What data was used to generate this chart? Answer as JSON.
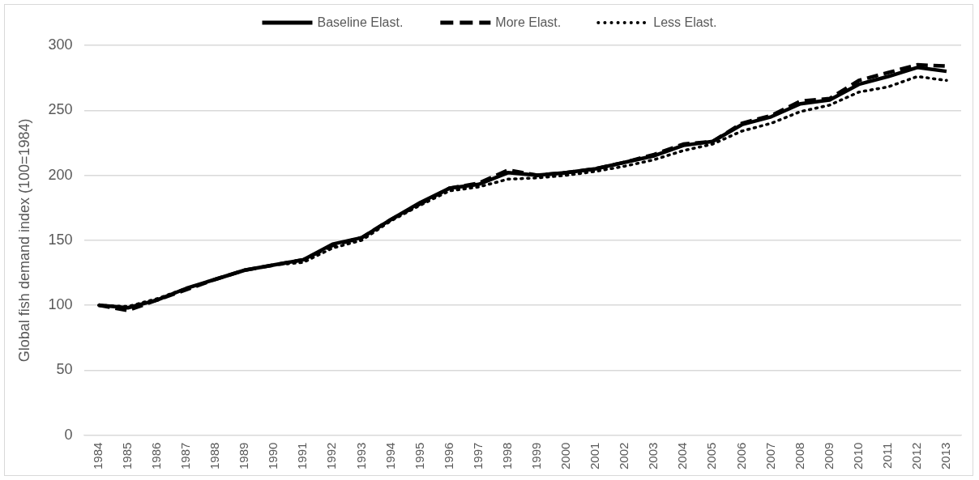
{
  "chart_data": {
    "type": "line",
    "ylabel": "Global fish demand index (100=1984)",
    "categories": [
      "1984",
      "1985",
      "1986",
      "1987",
      "1988",
      "1989",
      "1990",
      "1991",
      "1992",
      "1993",
      "1994",
      "1995",
      "1996",
      "1997",
      "1998",
      "1999",
      "2000",
      "2001",
      "2002",
      "2003",
      "2004",
      "2005",
      "2006",
      "2007",
      "2008",
      "2009",
      "2010",
      "2011",
      "2012",
      "2013"
    ],
    "series": [
      {
        "name": "Baseline Elast.",
        "color": "#000000",
        "line_style": "solid",
        "values": [
          100,
          98,
          104,
          113,
          120,
          127,
          131,
          135,
          147,
          152,
          166,
          179,
          190,
          193,
          202,
          200,
          202,
          205,
          210,
          215,
          223,
          226,
          239,
          245,
          255,
          258,
          270,
          276,
          283,
          280
        ]
      },
      {
        "name": "More Elast.",
        "color": "#000000",
        "line_style": "dashed",
        "values": [
          100,
          96,
          104,
          112,
          120,
          127,
          131,
          135,
          146,
          152,
          166,
          178,
          190,
          194,
          204,
          200,
          202,
          205,
          210,
          216,
          224,
          226,
          240,
          246,
          257,
          259,
          273,
          279,
          285,
          284
        ]
      },
      {
        "name": "Less Elast.",
        "color": "#000000",
        "line_style": "dotted",
        "values": [
          100,
          99,
          105,
          113,
          120,
          127,
          131,
          133,
          144,
          150,
          165,
          177,
          188,
          191,
          197,
          198,
          200,
          203,
          207,
          212,
          219,
          224,
          234,
          240,
          249,
          254,
          264,
          268,
          276,
          273
        ]
      }
    ],
    "ylim": [
      0,
      300
    ],
    "yticks": [
      0,
      50,
      100,
      150,
      200,
      250,
      300
    ],
    "grid": "y",
    "legend": "top",
    "marker": "none"
  }
}
